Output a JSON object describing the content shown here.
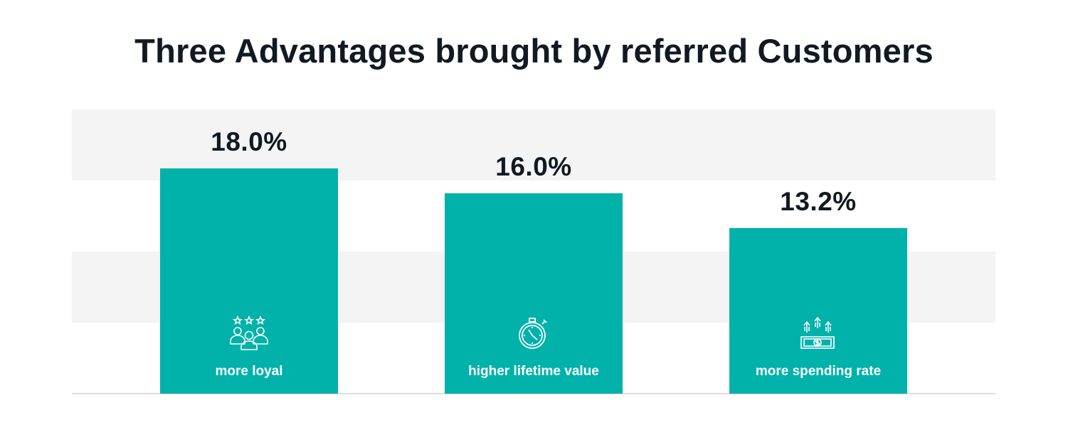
{
  "title": "Three Advantages brought by referred Customers",
  "colors": {
    "bar": "#00b2aa",
    "band": "#f4f4f4",
    "text": "#111a22"
  },
  "chart_data": {
    "type": "bar",
    "title": "Three Advantages brought by referred Customers",
    "categories": [
      "more loyal",
      "higher lifetime value",
      "more spending rate"
    ],
    "values": [
      18.0,
      16.0,
      13.2
    ],
    "value_labels": [
      "18.0%",
      "16.0%",
      "13.2%"
    ],
    "icons": [
      "customers-stars-icon",
      "stopwatch-icon",
      "money-up-arrows-icon"
    ],
    "xlabel": "",
    "ylabel": "",
    "ylim": [
      0,
      22.7
    ],
    "grid": true,
    "legend": "none"
  }
}
